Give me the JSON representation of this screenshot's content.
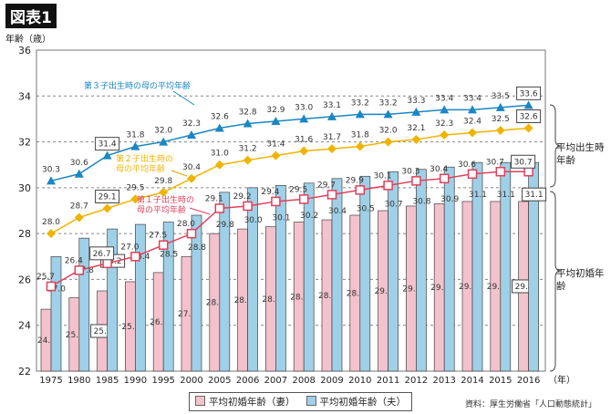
{
  "figure_label": "図表1",
  "right_labels": {
    "birth": "平均出生時年齢",
    "marriage": "平均初婚年齢"
  },
  "source": "資料：厚生労働省「人口動態統計」",
  "chart_data": {
    "type": "bar+line",
    "ylabel": "年齢（歳）",
    "xlabel_unit": "（年）",
    "ylim": [
      22,
      36
    ],
    "yticks": [
      22,
      24,
      26,
      28,
      30,
      32,
      34,
      36
    ],
    "grid": true,
    "categories": [
      "1975",
      "1980",
      "1985",
      "1990",
      "1995",
      "2000",
      "2005",
      "2006",
      "2007",
      "2008",
      "2009",
      "2010",
      "2011",
      "2012",
      "2013",
      "2014",
      "2015",
      "2016"
    ],
    "bars": [
      {
        "name": "平均初婚年齢（妻）",
        "color": "#f4c2cc",
        "values": [
          24.7,
          25.2,
          25.5,
          25.9,
          26.3,
          27.0,
          28.0,
          28.2,
          28.3,
          28.5,
          28.6,
          28.8,
          29.0,
          29.2,
          29.3,
          29.4,
          29.4,
          29.4
        ]
      },
      {
        "name": "平均初婚年齢（夫）",
        "color": "#9fd0e8",
        "values": [
          27.0,
          27.8,
          28.2,
          28.4,
          28.5,
          28.8,
          29.8,
          30.0,
          30.1,
          30.2,
          30.4,
          30.5,
          30.7,
          30.8,
          30.9,
          31.1,
          31.1,
          31.1
        ]
      }
    ],
    "lines": [
      {
        "name": "第３子出生時の母の平均年齢",
        "color": "#1a86c2",
        "marker": "triangle",
        "values": [
          30.3,
          30.6,
          31.4,
          31.8,
          32.0,
          32.3,
          32.6,
          32.8,
          32.9,
          33.0,
          33.1,
          33.2,
          33.2,
          33.3,
          33.4,
          33.4,
          33.5,
          33.6
        ]
      },
      {
        "name": "第２子出生時の母の平均年齢",
        "color": "#f0b400",
        "marker": "diamond",
        "values": [
          28.0,
          28.7,
          29.1,
          29.5,
          29.8,
          30.4,
          31.0,
          31.2,
          31.4,
          31.6,
          31.7,
          31.8,
          32.0,
          32.1,
          32.3,
          32.4,
          32.5,
          32.6
        ]
      },
      {
        "name": "第１子出生時の母の平均年齢",
        "color": "#e0405a",
        "marker": "square",
        "values": [
          25.7,
          26.4,
          26.7,
          27.0,
          27.5,
          28.0,
          29.1,
          29.2,
          29.4,
          29.5,
          29.7,
          29.9,
          30.1,
          30.3,
          30.4,
          30.6,
          30.7,
          30.7
        ]
      }
    ],
    "annotations": [
      {
        "text": "第３子出生時の母の平均年齢",
        "series": 0
      },
      {
        "text": "第２子出生時の\n母の平均年齢",
        "series": 1
      },
      {
        "text": "第１子出生時の\n母の平均年齢",
        "series": 2
      }
    ],
    "boxed_label_years": [
      "1985",
      "2016"
    ],
    "legend": "bottom"
  }
}
